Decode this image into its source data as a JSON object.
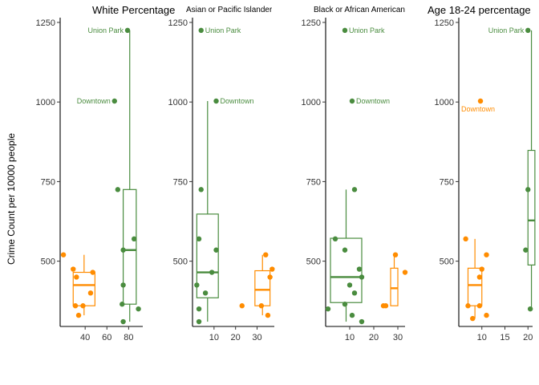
{
  "ylabel": "Crime Count per 10000 people",
  "colors": {
    "orange": "#FF8C00",
    "green": "#4A8C3F",
    "axis": "#000000",
    "tick_text": "#333333"
  },
  "chart_data": [
    {
      "type": "box",
      "title": "White Percentage",
      "xlim": [
        17,
        93
      ],
      "xticks": [
        40,
        60,
        80
      ],
      "ylim": [
        295,
        1265
      ],
      "yticks": [
        500,
        750,
        1000,
        1250
      ],
      "boxes": [
        {
          "color": "orange",
          "x_from": 29,
          "x_to": 49,
          "q1": 360,
          "median": 425,
          "q3": 465,
          "whisker_low": 330,
          "whisker_high": 520
        },
        {
          "color": "green",
          "x_from": 75,
          "x_to": 87,
          "q1": 365,
          "median": 535,
          "q3": 725,
          "whisker_low": 310,
          "whisker_high": 1225
        }
      ],
      "points": [
        {
          "color": "orange",
          "x": 20,
          "y": 520
        },
        {
          "color": "orange",
          "x": 29,
          "y": 475
        },
        {
          "color": "orange",
          "x": 32,
          "y": 450
        },
        {
          "color": "orange",
          "x": 31,
          "y": 360
        },
        {
          "color": "orange",
          "x": 34,
          "y": 330
        },
        {
          "color": "orange",
          "x": 38,
          "y": 360
        },
        {
          "color": "orange",
          "x": 47,
          "y": 465
        },
        {
          "color": "orange",
          "x": 45,
          "y": 400
        },
        {
          "color": "green",
          "x": 79,
          "y": 1225
        },
        {
          "color": "green",
          "x": 67,
          "y": 1003
        },
        {
          "color": "green",
          "x": 70,
          "y": 725
        },
        {
          "color": "green",
          "x": 85,
          "y": 570
        },
        {
          "color": "green",
          "x": 75,
          "y": 535
        },
        {
          "color": "green",
          "x": 75,
          "y": 425
        },
        {
          "color": "green",
          "x": 74,
          "y": 365
        },
        {
          "color": "green",
          "x": 89,
          "y": 350
        },
        {
          "color": "green",
          "x": 75,
          "y": 310
        }
      ],
      "annotations": [
        {
          "text": "Union Park",
          "color": "green",
          "x": 79,
          "y": 1225,
          "anchor": "end"
        },
        {
          "text": "Downtown",
          "color": "green",
          "x": 67,
          "y": 1003,
          "anchor": "end"
        }
      ]
    },
    {
      "type": "box",
      "title": "Asian or Pacific Islander",
      "xlim": [
        0,
        38
      ],
      "xticks": [
        10,
        20,
        30
      ],
      "ylim": [
        295,
        1265
      ],
      "yticks": [
        500,
        750,
        1000,
        1250
      ],
      "boxes": [
        {
          "color": "orange",
          "x_from": 29,
          "x_to": 36,
          "q1": 360,
          "median": 410,
          "q3": 470,
          "whisker_low": 330,
          "whisker_high": 520
        },
        {
          "color": "green",
          "x_from": 2,
          "x_to": 12,
          "q1": 385,
          "median": 465,
          "q3": 648,
          "whisker_low": 310,
          "whisker_high": 1003
        }
      ],
      "points": [
        {
          "color": "orange",
          "x": 34,
          "y": 520
        },
        {
          "color": "orange",
          "x": 37,
          "y": 475
        },
        {
          "color": "orange",
          "x": 36,
          "y": 450
        },
        {
          "color": "orange",
          "x": 23,
          "y": 360
        },
        {
          "color": "orange",
          "x": 32,
          "y": 360
        },
        {
          "color": "orange",
          "x": 35,
          "y": 330
        },
        {
          "color": "green",
          "x": 4,
          "y": 1225
        },
        {
          "color": "green",
          "x": 11,
          "y": 1003
        },
        {
          "color": "green",
          "x": 4,
          "y": 725
        },
        {
          "color": "green",
          "x": 3,
          "y": 570
        },
        {
          "color": "green",
          "x": 11,
          "y": 535
        },
        {
          "color": "green",
          "x": 9,
          "y": 465
        },
        {
          "color": "green",
          "x": 2,
          "y": 425
        },
        {
          "color": "green",
          "x": 6,
          "y": 400
        },
        {
          "color": "green",
          "x": 3,
          "y": 350
        },
        {
          "color": "green",
          "x": 3,
          "y": 310
        }
      ],
      "annotations": [
        {
          "text": "Union Park",
          "color": "green",
          "x": 4,
          "y": 1225,
          "anchor": "start"
        },
        {
          "text": "Downtown",
          "color": "green",
          "x": 11,
          "y": 1003,
          "anchor": "start"
        }
      ]
    },
    {
      "type": "box",
      "title": "Black or African American",
      "xlim": [
        0,
        33
      ],
      "xticks": [
        10,
        20,
        30
      ],
      "ylim": [
        295,
        1265
      ],
      "yticks": [
        500,
        750,
        1000,
        1250
      ],
      "boxes": [
        {
          "color": "orange",
          "x_from": 27,
          "x_to": 30,
          "q1": 360,
          "median": 415,
          "q3": 478,
          "whisker_low": 360,
          "whisker_high": 520
        },
        {
          "color": "green",
          "x_from": 2,
          "x_to": 15,
          "q1": 370,
          "median": 450,
          "q3": 572,
          "whisker_low": 310,
          "whisker_high": 725
        }
      ],
      "points": [
        {
          "color": "orange",
          "x": 29,
          "y": 520
        },
        {
          "color": "orange",
          "x": 33,
          "y": 465
        },
        {
          "color": "orange",
          "x": 24,
          "y": 360
        },
        {
          "color": "orange",
          "x": 25,
          "y": 360
        },
        {
          "color": "green",
          "x": 8,
          "y": 1225
        },
        {
          "color": "green",
          "x": 11,
          "y": 1003
        },
        {
          "color": "green",
          "x": 12,
          "y": 725
        },
        {
          "color": "green",
          "x": 4,
          "y": 570
        },
        {
          "color": "green",
          "x": 8,
          "y": 535
        },
        {
          "color": "green",
          "x": 14,
          "y": 475
        },
        {
          "color": "green",
          "x": 15,
          "y": 450
        },
        {
          "color": "green",
          "x": 10,
          "y": 425
        },
        {
          "color": "green",
          "x": 12,
          "y": 400
        },
        {
          "color": "green",
          "x": 8,
          "y": 365
        },
        {
          "color": "green",
          "x": 1,
          "y": 350
        },
        {
          "color": "green",
          "x": 11,
          "y": 330
        },
        {
          "color": "green",
          "x": 15,
          "y": 310
        }
      ],
      "annotations": [
        {
          "text": "Union Park",
          "color": "green",
          "x": 8,
          "y": 1225,
          "anchor": "start"
        },
        {
          "text": "Downtown",
          "color": "green",
          "x": 11,
          "y": 1003,
          "anchor": "start"
        }
      ]
    },
    {
      "type": "box",
      "title": "Age 18-24 percentage",
      "xlim": [
        5,
        21
      ],
      "xticks": [
        10,
        15,
        20
      ],
      "ylim": [
        295,
        1265
      ],
      "yticks": [
        500,
        750,
        1000,
        1250
      ],
      "boxes": [
        {
          "color": "orange",
          "x_from": 7,
          "x_to": 10,
          "q1": 360,
          "median": 425,
          "q3": 478,
          "whisker_low": 320,
          "whisker_high": 570
        },
        {
          "color": "green",
          "x_from": 20,
          "x_to": 21.5,
          "q1": 488,
          "median": 628,
          "q3": 848,
          "whisker_low": 350,
          "whisker_high": 1225
        }
      ],
      "points": [
        {
          "color": "orange",
          "x": 9.7,
          "y": 1003
        },
        {
          "color": "orange",
          "x": 6.5,
          "y": 570
        },
        {
          "color": "orange",
          "x": 11,
          "y": 520
        },
        {
          "color": "orange",
          "x": 10,
          "y": 475
        },
        {
          "color": "orange",
          "x": 9.5,
          "y": 450
        },
        {
          "color": "orange",
          "x": 7,
          "y": 360
        },
        {
          "color": "orange",
          "x": 9.5,
          "y": 360
        },
        {
          "color": "orange",
          "x": 11,
          "y": 330
        },
        {
          "color": "orange",
          "x": 8,
          "y": 320
        },
        {
          "color": "green",
          "x": 20,
          "y": 1225
        },
        {
          "color": "green",
          "x": 20,
          "y": 725
        },
        {
          "color": "green",
          "x": 19.5,
          "y": 535
        },
        {
          "color": "green",
          "x": 20.5,
          "y": 350
        }
      ],
      "annotations": [
        {
          "text": "Union Park",
          "color": "green",
          "x": 20,
          "y": 1225,
          "anchor": "end"
        },
        {
          "text": "Downtown",
          "color": "orange",
          "x": 9.7,
          "y": 1003,
          "anchor": "middle-below"
        }
      ]
    }
  ]
}
